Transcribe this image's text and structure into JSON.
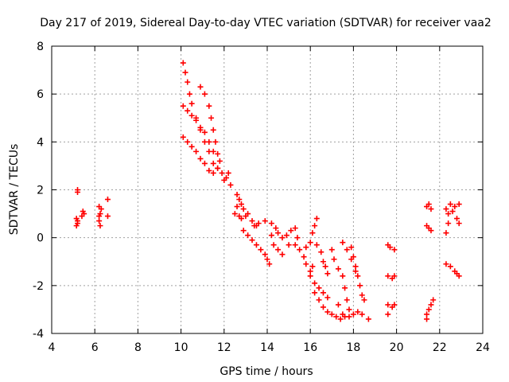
{
  "chart_data": {
    "type": "scatter",
    "title": "Day 217 of 2019, Sidereal Day-to-day VTEC variation (SDTVAR) for receiver vaa2",
    "xlabel": "GPS time / hours",
    "ylabel": "SDTVAR / TECUs",
    "xlim": [
      4,
      24
    ],
    "ylim": [
      -4,
      8
    ],
    "xticks": [
      "4",
      "6",
      "8",
      "10",
      "12",
      "14",
      "16",
      "18",
      "20",
      "22",
      "24"
    ],
    "yticks": [
      "-4",
      "-2",
      "0",
      "2",
      "4",
      "6",
      "8"
    ],
    "grid": true,
    "marker": "plus",
    "color": "#ff0000",
    "series": [
      {
        "name": "SDTVAR",
        "points": [
          [
            5.2,
            2.0
          ],
          [
            5.2,
            1.9
          ],
          [
            5.15,
            0.8
          ],
          [
            5.2,
            0.6
          ],
          [
            5.15,
            0.5
          ],
          [
            5.2,
            0.7
          ],
          [
            5.4,
            0.9
          ],
          [
            5.5,
            1.0
          ],
          [
            5.45,
            1.1
          ],
          [
            6.2,
            1.3
          ],
          [
            6.25,
            1.0
          ],
          [
            6.2,
            0.7
          ],
          [
            6.25,
            0.5
          ],
          [
            6.3,
            1.2
          ],
          [
            6.2,
            0.9
          ],
          [
            6.6,
            0.9
          ],
          [
            6.6,
            1.6
          ],
          [
            10.1,
            7.3
          ],
          [
            10.2,
            6.9
          ],
          [
            10.3,
            6.5
          ],
          [
            10.4,
            6.0
          ],
          [
            10.5,
            5.6
          ],
          [
            10.7,
            5.0
          ],
          [
            10.9,
            4.5
          ],
          [
            11.1,
            4.0
          ],
          [
            11.3,
            3.6
          ],
          [
            11.5,
            3.1
          ],
          [
            11.7,
            2.9
          ],
          [
            10.1,
            5.5
          ],
          [
            10.3,
            5.3
          ],
          [
            10.5,
            5.1
          ],
          [
            10.7,
            4.9
          ],
          [
            10.9,
            4.6
          ],
          [
            11.1,
            4.4
          ],
          [
            11.3,
            4.0
          ],
          [
            11.5,
            3.6
          ],
          [
            10.1,
            4.2
          ],
          [
            10.3,
            4.0
          ],
          [
            10.5,
            3.8
          ],
          [
            10.7,
            3.6
          ],
          [
            10.9,
            3.3
          ],
          [
            11.1,
            3.1
          ],
          [
            11.3,
            2.8
          ],
          [
            11.5,
            2.7
          ],
          [
            10.9,
            6.3
          ],
          [
            11.1,
            6.0
          ],
          [
            11.3,
            5.5
          ],
          [
            11.4,
            5.0
          ],
          [
            11.5,
            4.5
          ],
          [
            11.6,
            4.0
          ],
          [
            11.7,
            3.5
          ],
          [
            11.8,
            3.2
          ],
          [
            11.7,
            2.9
          ],
          [
            11.9,
            2.7
          ],
          [
            12.1,
            2.5
          ],
          [
            12.2,
            2.7
          ],
          [
            12.0,
            2.4
          ],
          [
            12.3,
            2.2
          ],
          [
            12.6,
            1.8
          ],
          [
            12.7,
            1.6
          ],
          [
            12.8,
            1.4
          ],
          [
            12.9,
            1.2
          ],
          [
            12.6,
            1.3
          ],
          [
            12.5,
            1.0
          ],
          [
            12.7,
            0.9
          ],
          [
            12.8,
            0.8
          ],
          [
            13.0,
            0.9
          ],
          [
            13.1,
            1.0
          ],
          [
            13.3,
            0.7
          ],
          [
            13.5,
            0.5
          ],
          [
            12.9,
            0.3
          ],
          [
            13.1,
            0.1
          ],
          [
            13.3,
            -0.1
          ],
          [
            13.5,
            -0.3
          ],
          [
            13.7,
            -0.5
          ],
          [
            13.9,
            -0.7
          ],
          [
            14.0,
            -0.9
          ],
          [
            14.1,
            -1.1
          ],
          [
            13.4,
            0.5
          ],
          [
            13.6,
            0.6
          ],
          [
            13.9,
            0.7
          ],
          [
            14.2,
            0.6
          ],
          [
            14.4,
            0.4
          ],
          [
            14.5,
            0.2
          ],
          [
            14.7,
            0.0
          ],
          [
            14.9,
            0.1
          ],
          [
            15.1,
            0.3
          ],
          [
            15.3,
            0.4
          ],
          [
            15.4,
            0.0
          ],
          [
            15.3,
            -0.3
          ],
          [
            14.3,
            -0.3
          ],
          [
            14.5,
            -0.5
          ],
          [
            14.7,
            -0.7
          ],
          [
            15.0,
            -0.3
          ],
          [
            14.2,
            0.1
          ],
          [
            15.5,
            -0.5
          ],
          [
            15.7,
            -0.8
          ],
          [
            15.8,
            -1.1
          ],
          [
            16.0,
            -1.4
          ],
          [
            16.1,
            -1.2
          ],
          [
            15.8,
            -0.4
          ],
          [
            16.0,
            -0.2
          ],
          [
            16.1,
            0.2
          ],
          [
            16.2,
            0.5
          ],
          [
            16.3,
            0.8
          ],
          [
            16.3,
            -0.3
          ],
          [
            16.5,
            -0.6
          ],
          [
            16.6,
            -1.0
          ],
          [
            16.7,
            -1.2
          ],
          [
            16.8,
            -1.5
          ],
          [
            16.0,
            -1.6
          ],
          [
            16.2,
            -1.9
          ],
          [
            16.4,
            -2.1
          ],
          [
            16.6,
            -2.3
          ],
          [
            16.8,
            -2.5
          ],
          [
            16.2,
            -2.3
          ],
          [
            16.4,
            -2.6
          ],
          [
            16.6,
            -2.9
          ],
          [
            16.8,
            -3.1
          ],
          [
            17.0,
            -3.2
          ],
          [
            17.2,
            -3.3
          ],
          [
            17.4,
            -3.4
          ],
          [
            17.6,
            -3.3
          ],
          [
            17.8,
            -3.3
          ],
          [
            18.0,
            -3.2
          ],
          [
            18.2,
            -3.1
          ],
          [
            18.4,
            -3.2
          ],
          [
            18.7,
            -3.4
          ],
          [
            17.0,
            -0.5
          ],
          [
            17.1,
            -0.9
          ],
          [
            17.3,
            -1.3
          ],
          [
            17.5,
            -1.6
          ],
          [
            17.6,
            -2.1
          ],
          [
            17.7,
            -2.6
          ],
          [
            17.8,
            -3.0
          ],
          [
            17.3,
            -2.8
          ],
          [
            17.5,
            -3.2
          ],
          [
            17.9,
            -0.4
          ],
          [
            18.0,
            -0.8
          ],
          [
            18.1,
            -1.2
          ],
          [
            18.2,
            -1.6
          ],
          [
            18.3,
            -2.0
          ],
          [
            18.4,
            -2.4
          ],
          [
            18.5,
            -2.6
          ],
          [
            17.5,
            -0.2
          ],
          [
            17.7,
            -0.5
          ],
          [
            17.9,
            -0.9
          ],
          [
            18.1,
            -1.4
          ],
          [
            19.6,
            -0.3
          ],
          [
            19.7,
            -0.4
          ],
          [
            19.9,
            -0.5
          ],
          [
            19.6,
            -1.6
          ],
          [
            19.8,
            -1.7
          ],
          [
            19.9,
            -1.6
          ],
          [
            19.6,
            -2.8
          ],
          [
            19.8,
            -2.9
          ],
          [
            19.9,
            -2.8
          ],
          [
            19.6,
            -3.2
          ],
          [
            21.4,
            1.3
          ],
          [
            21.5,
            1.4
          ],
          [
            21.6,
            1.2
          ],
          [
            21.4,
            0.5
          ],
          [
            21.5,
            0.4
          ],
          [
            21.6,
            0.3
          ],
          [
            21.4,
            -3.2
          ],
          [
            21.5,
            -3.0
          ],
          [
            21.6,
            -2.8
          ],
          [
            21.7,
            -2.6
          ],
          [
            21.4,
            -3.4
          ],
          [
            22.3,
            1.2
          ],
          [
            22.5,
            1.4
          ],
          [
            22.7,
            1.3
          ],
          [
            22.9,
            1.4
          ],
          [
            22.4,
            1.0
          ],
          [
            22.6,
            1.1
          ],
          [
            22.8,
            0.8
          ],
          [
            22.9,
            0.6
          ],
          [
            22.3,
            0.2
          ],
          [
            22.4,
            0.6
          ],
          [
            22.3,
            -1.1
          ],
          [
            22.5,
            -1.2
          ],
          [
            22.7,
            -1.4
          ],
          [
            22.9,
            -1.6
          ],
          [
            22.8,
            -1.5
          ]
        ]
      }
    ]
  }
}
